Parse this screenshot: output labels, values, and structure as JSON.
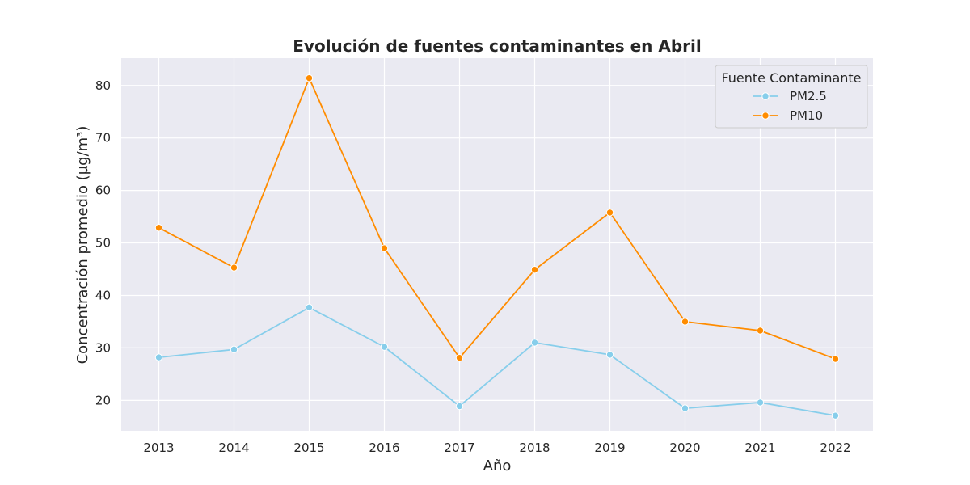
{
  "chart_data": {
    "type": "line",
    "title": "Evolución de fuentes contaminantes en Abril",
    "xlabel": "Año",
    "ylabel": "Concentración promedio (µg/m³)",
    "x": [
      "2013",
      "2014",
      "2015",
      "2016",
      "2017",
      "2018",
      "2019",
      "2020",
      "2021",
      "2022"
    ],
    "ylim": [
      14.2,
      85.2
    ],
    "yticks": [
      20,
      30,
      40,
      50,
      60,
      70,
      80
    ],
    "grid": true,
    "legend": {
      "title": "Fuente Contaminante",
      "position": "top-right"
    },
    "series": [
      {
        "name": "PM2.5",
        "color": "#87ceeb",
        "values": [
          28.2,
          29.7,
          37.7,
          30.2,
          18.9,
          31.0,
          28.7,
          18.5,
          19.6,
          17.1
        ]
      },
      {
        "name": "PM10",
        "color": "#ff8c00",
        "values": [
          52.9,
          45.3,
          81.4,
          49.0,
          28.1,
          44.9,
          55.8,
          35.0,
          33.3,
          27.9
        ]
      }
    ]
  }
}
